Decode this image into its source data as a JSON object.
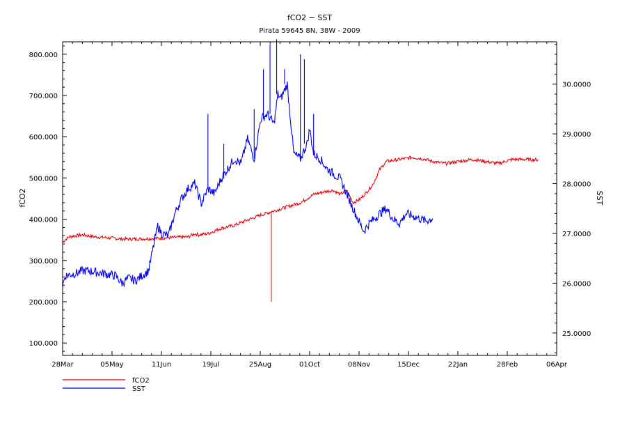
{
  "chart_data": {
    "type": "line",
    "title": "fCO2 − SST",
    "subtitle": "Pirata 59645 8N, 38W - 2009",
    "ylabel_left": "fCO2",
    "ylabel_right": "SST",
    "x_ticks": [
      "28Mar",
      "05May",
      "11Jun",
      "19Jul",
      "25Aug",
      "01Oct",
      "08Nov",
      "15Dec",
      "22Jan",
      "28Feb",
      "06Apr"
    ],
    "y_left_ticks": [
      "100.000",
      "200.000",
      "300.000",
      "400.000",
      "500.000",
      "600.000",
      "700.000",
      "800.000"
    ],
    "y_left_range": [
      70,
      830
    ],
    "y_right_ticks": [
      "25.0000",
      "26.0000",
      "27.0000",
      "28.0000",
      "29.0000",
      "30.0000"
    ],
    "y_right_range": [
      24.55,
      30.85
    ],
    "x_range_days": [
      0,
      374
    ],
    "legend_position": "bottom-left",
    "grid": false,
    "series": [
      {
        "name": "fCO2",
        "axis": "left",
        "color": "#e8000b",
        "points": [
          [
            0,
            345
          ],
          [
            5,
            358
          ],
          [
            15,
            362
          ],
          [
            25,
            357
          ],
          [
            35,
            355
          ],
          [
            45,
            352
          ],
          [
            55,
            352
          ],
          [
            65,
            353
          ],
          [
            75,
            354
          ],
          [
            85,
            356
          ],
          [
            95,
            357
          ],
          [
            100,
            365
          ],
          [
            103,
            362
          ],
          [
            110,
            365
          ],
          [
            120,
            378
          ],
          [
            130,
            385
          ],
          [
            140,
            398
          ],
          [
            150,
            410
          ],
          [
            160,
            420
          ],
          [
            170,
            430
          ],
          [
            180,
            440
          ],
          [
            185,
            450
          ],
          [
            190,
            460
          ],
          [
            200,
            468
          ],
          [
            205,
            470
          ],
          [
            210,
            460
          ],
          [
            215,
            470
          ],
          [
            220,
            440
          ],
          [
            225,
            448
          ],
          [
            230,
            465
          ],
          [
            235,
            485
          ],
          [
            240,
            520
          ],
          [
            245,
            540
          ],
          [
            255,
            545
          ],
          [
            265,
            550
          ],
          [
            275,
            545
          ],
          [
            280,
            540
          ],
          [
            290,
            535
          ],
          [
            300,
            540
          ],
          [
            310,
            545
          ],
          [
            320,
            540
          ],
          [
            330,
            535
          ],
          [
            340,
            545
          ],
          [
            350,
            545
          ],
          [
            360,
            544
          ]
        ],
        "spikes": [
          [
            158,
            200
          ]
        ]
      },
      {
        "name": "SST",
        "axis": "right",
        "color": "#0000ee",
        "points": [
          [
            0,
            25.95
          ],
          [
            2,
            26.15
          ],
          [
            10,
            26.2
          ],
          [
            15,
            26.25
          ],
          [
            20,
            26.25
          ],
          [
            30,
            26.2
          ],
          [
            40,
            26.15
          ],
          [
            45,
            26.0
          ],
          [
            50,
            26.1
          ],
          [
            55,
            26.05
          ],
          [
            60,
            26.15
          ],
          [
            65,
            26.25
          ],
          [
            67,
            26.5
          ],
          [
            70,
            26.9
          ],
          [
            72,
            27.15
          ],
          [
            75,
            27.0
          ],
          [
            80,
            26.95
          ],
          [
            85,
            27.4
          ],
          [
            90,
            27.7
          ],
          [
            95,
            27.9
          ],
          [
            100,
            28.0
          ],
          [
            105,
            27.6
          ],
          [
            110,
            27.9
          ],
          [
            115,
            27.8
          ],
          [
            120,
            28.1
          ],
          [
            125,
            28.3
          ],
          [
            130,
            28.5
          ],
          [
            135,
            28.4
          ],
          [
            140,
            28.9
          ],
          [
            145,
            28.5
          ],
          [
            150,
            29.3
          ],
          [
            155,
            29.4
          ],
          [
            160,
            29.2
          ],
          [
            163,
            29.8
          ],
          [
            165,
            29.7
          ],
          [
            170,
            30.0
          ],
          [
            175,
            28.6
          ],
          [
            180,
            28.5
          ],
          [
            185,
            28.8
          ],
          [
            187,
            29.1
          ],
          [
            190,
            28.6
          ],
          [
            195,
            28.5
          ],
          [
            200,
            28.3
          ],
          [
            205,
            28.2
          ],
          [
            210,
            28.1
          ],
          [
            215,
            27.8
          ],
          [
            220,
            27.5
          ],
          [
            225,
            27.2
          ],
          [
            228,
            27.05
          ],
          [
            232,
            27.2
          ],
          [
            240,
            27.4
          ],
          [
            245,
            27.5
          ],
          [
            250,
            27.3
          ],
          [
            255,
            27.2
          ],
          [
            260,
            27.4
          ],
          [
            265,
            27.35
          ],
          [
            270,
            27.3
          ],
          [
            275,
            27.25
          ],
          [
            280,
            27.3
          ]
        ],
        "peaks": [
          [
            110,
            29.4
          ],
          [
            122,
            28.8
          ],
          [
            145,
            29.5
          ],
          [
            152,
            30.3
          ],
          [
            157,
            30.8
          ],
          [
            162,
            30.9
          ],
          [
            168,
            30.3
          ],
          [
            180,
            30.6
          ],
          [
            183,
            30.5
          ],
          [
            190,
            29.4
          ]
        ]
      }
    ]
  }
}
